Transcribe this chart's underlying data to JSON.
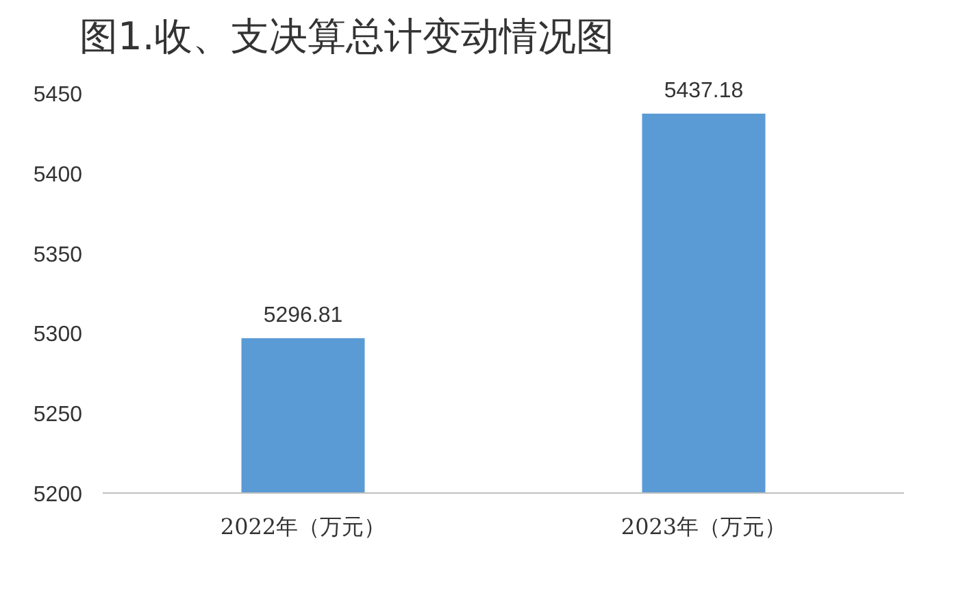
{
  "chart_data": {
    "type": "bar",
    "title": "图1.收、支决算总计变动情况图",
    "categories": [
      "2022年（万元）",
      "2023年（万元）"
    ],
    "values": [
      5296.81,
      5437.18
    ],
    "color": "#5b9bd5",
    "ylim": [
      5200,
      5450
    ],
    "yticks": [
      5200,
      5250,
      5300,
      5350,
      5400,
      5450
    ],
    "data_labels": true,
    "grid": false,
    "legend": false
  }
}
